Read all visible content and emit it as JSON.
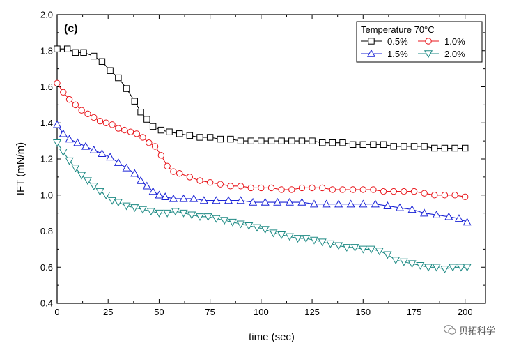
{
  "chart_data": {
    "type": "line",
    "panel_label": "(c)",
    "xlabel": "time (sec)",
    "ylabel": "IFT (mN/m)",
    "xlim": [
      0,
      210
    ],
    "ylim": [
      0.4,
      2.0
    ],
    "xticks": [
      0,
      25,
      50,
      75,
      100,
      125,
      150,
      175,
      200
    ],
    "yticks": [
      0.4,
      0.6,
      0.8,
      1.0,
      1.2,
      1.4,
      1.6,
      1.8,
      2.0
    ],
    "ytick_labels": [
      "0.4",
      "0.6",
      "0.8",
      "1.0",
      "1.2",
      "1.4",
      "1.6",
      "1.8",
      "2.0"
    ],
    "legend": {
      "title": "Temperature 70°C",
      "position": "top-right"
    },
    "series": [
      {
        "name": "0.5%",
        "color": "#000000",
        "marker": "square",
        "x": [
          0,
          5,
          9,
          13,
          18,
          22,
          26,
          30,
          34,
          38,
          41,
          44,
          47,
          51,
          55,
          60,
          65,
          70,
          75,
          80,
          85,
          90,
          95,
          100,
          105,
          110,
          115,
          120,
          125,
          130,
          135,
          140,
          145,
          150,
          155,
          160,
          165,
          170,
          175,
          180,
          185,
          190,
          195,
          200
        ],
        "values": [
          1.81,
          1.81,
          1.79,
          1.79,
          1.77,
          1.74,
          1.69,
          1.65,
          1.59,
          1.52,
          1.46,
          1.42,
          1.38,
          1.36,
          1.35,
          1.34,
          1.33,
          1.32,
          1.32,
          1.31,
          1.31,
          1.3,
          1.3,
          1.3,
          1.3,
          1.3,
          1.3,
          1.3,
          1.3,
          1.29,
          1.29,
          1.29,
          1.28,
          1.28,
          1.28,
          1.28,
          1.27,
          1.27,
          1.27,
          1.27,
          1.26,
          1.26,
          1.26,
          1.26
        ]
      },
      {
        "name": "1.0%",
        "color": "#e8161b",
        "marker": "circle",
        "x": [
          0,
          3,
          6,
          9,
          12,
          15,
          18,
          21,
          24,
          27,
          30,
          33,
          36,
          39,
          42,
          45,
          48,
          51,
          54,
          57,
          60,
          65,
          70,
          75,
          80,
          85,
          90,
          95,
          100,
          105,
          110,
          115,
          120,
          125,
          130,
          135,
          140,
          145,
          150,
          155,
          160,
          165,
          170,
          175,
          180,
          185,
          190,
          195,
          200
        ],
        "values": [
          1.62,
          1.57,
          1.53,
          1.5,
          1.47,
          1.45,
          1.43,
          1.41,
          1.4,
          1.39,
          1.37,
          1.36,
          1.35,
          1.34,
          1.32,
          1.29,
          1.27,
          1.22,
          1.16,
          1.13,
          1.12,
          1.1,
          1.08,
          1.07,
          1.06,
          1.05,
          1.05,
          1.04,
          1.04,
          1.04,
          1.03,
          1.03,
          1.04,
          1.04,
          1.04,
          1.03,
          1.03,
          1.03,
          1.03,
          1.03,
          1.02,
          1.02,
          1.02,
          1.02,
          1.01,
          1.0,
          1.0,
          1.0,
          0.99
        ]
      },
      {
        "name": "1.5%",
        "color": "#1a23d6",
        "marker": "triangle-up",
        "x": [
          0,
          3,
          6,
          10,
          14,
          18,
          22,
          26,
          30,
          34,
          38,
          41,
          44,
          47,
          50,
          53,
          57,
          62,
          67,
          72,
          78,
          84,
          90,
          96,
          102,
          108,
          114,
          120,
          126,
          132,
          138,
          144,
          150,
          156,
          162,
          168,
          174,
          180,
          186,
          192,
          197,
          201
        ],
        "values": [
          1.39,
          1.34,
          1.31,
          1.29,
          1.27,
          1.25,
          1.23,
          1.21,
          1.18,
          1.15,
          1.12,
          1.08,
          1.05,
          1.02,
          1.0,
          0.99,
          0.98,
          0.98,
          0.98,
          0.97,
          0.97,
          0.97,
          0.97,
          0.96,
          0.96,
          0.96,
          0.96,
          0.96,
          0.95,
          0.95,
          0.95,
          0.95,
          0.95,
          0.95,
          0.94,
          0.93,
          0.92,
          0.9,
          0.89,
          0.88,
          0.87,
          0.85
        ]
      },
      {
        "name": "2.0%",
        "color": "#1e8a84",
        "marker": "triangle-down",
        "x": [
          0,
          3,
          6,
          9,
          12,
          15,
          18,
          21,
          24,
          27,
          30,
          34,
          38,
          42,
          46,
          50,
          54,
          58,
          62,
          66,
          70,
          74,
          78,
          82,
          86,
          90,
          94,
          98,
          102,
          106,
          110,
          114,
          118,
          122,
          126,
          130,
          134,
          138,
          142,
          146,
          150,
          154,
          158,
          162,
          166,
          170,
          174,
          178,
          182,
          186,
          190,
          194,
          198,
          201
        ],
        "values": [
          1.29,
          1.24,
          1.19,
          1.15,
          1.11,
          1.08,
          1.05,
          1.02,
          1.0,
          0.97,
          0.96,
          0.94,
          0.93,
          0.92,
          0.91,
          0.9,
          0.9,
          0.91,
          0.9,
          0.89,
          0.88,
          0.88,
          0.87,
          0.86,
          0.85,
          0.84,
          0.83,
          0.82,
          0.81,
          0.79,
          0.78,
          0.77,
          0.76,
          0.76,
          0.75,
          0.74,
          0.73,
          0.72,
          0.71,
          0.71,
          0.7,
          0.7,
          0.69,
          0.67,
          0.64,
          0.63,
          0.62,
          0.61,
          0.6,
          0.6,
          0.59,
          0.6,
          0.6,
          0.6
        ]
      }
    ]
  },
  "watermark": {
    "text": "贝拓科学"
  }
}
